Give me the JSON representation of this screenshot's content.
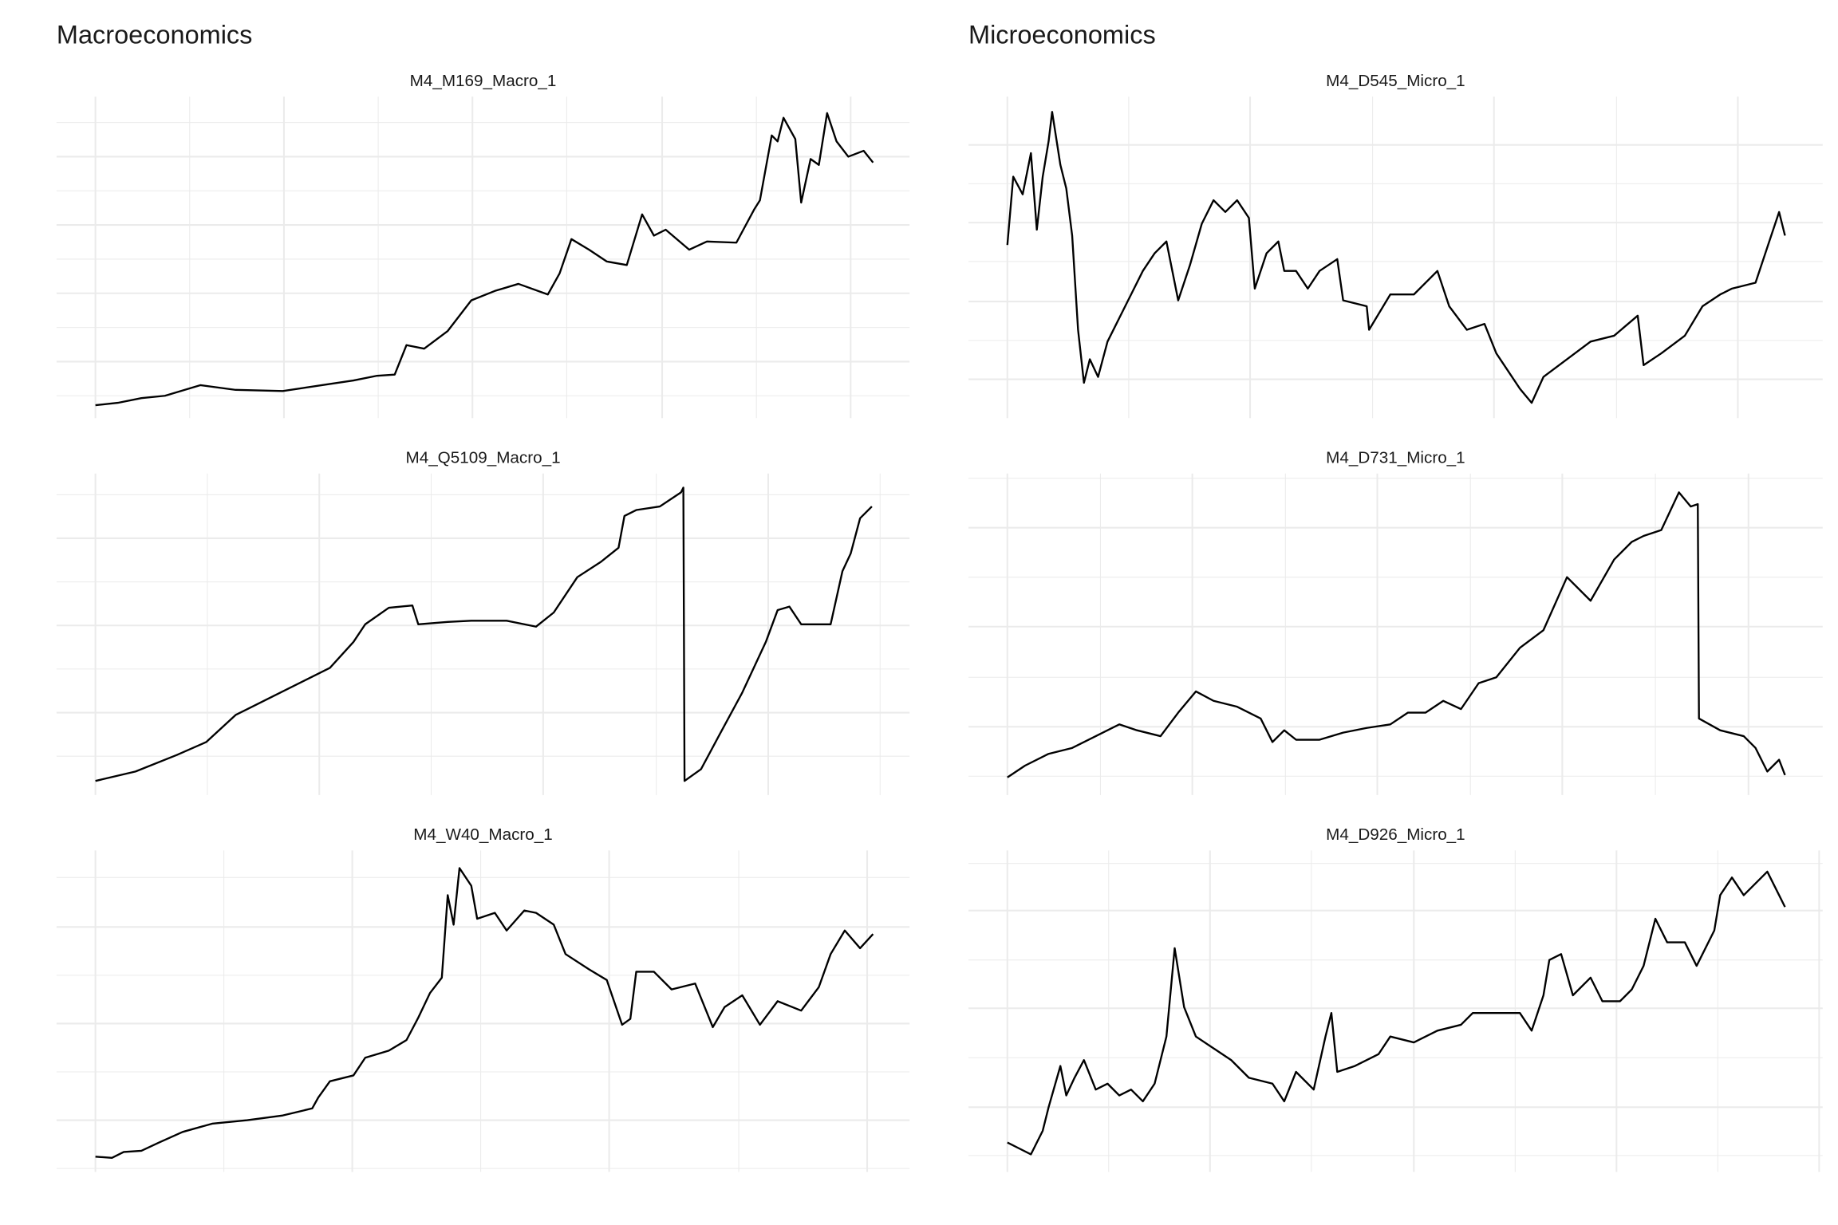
{
  "headings": [
    "Macroeconomics",
    "Microeconomics"
  ],
  "chart_data": [
    {
      "type": "line",
      "title": "M4_M169_Macro_1",
      "color": "#000000",
      "grid": true,
      "xlim": [
        -33,
        691
      ],
      "ylim": [
        0,
        273
      ],
      "xticks": [
        0,
        160,
        320,
        481,
        641
      ],
      "xminor": [
        80,
        240,
        400,
        561
      ],
      "yticks": [
        48,
        106,
        164,
        222
      ],
      "yminor": [
        19,
        77,
        135,
        193,
        251
      ],
      "x": [
        0,
        19,
        39,
        59,
        89,
        119,
        159,
        199,
        219,
        239,
        254,
        264,
        279,
        299,
        319,
        339,
        359,
        384,
        394,
        404,
        419,
        434,
        451,
        464,
        474,
        484,
        504,
        519,
        544,
        559,
        564,
        574,
        579,
        584,
        594,
        599,
        607,
        614,
        621,
        629,
        639,
        652,
        660
      ],
      "values": [
        11,
        13,
        17,
        19,
        28,
        24,
        23,
        29,
        32,
        36,
        37,
        62,
        59,
        74,
        100,
        108,
        114,
        105,
        123,
        152,
        143,
        133,
        130,
        173,
        155,
        160,
        143,
        150,
        149,
        177,
        185,
        240,
        235,
        255,
        237,
        183,
        220,
        215,
        259,
        235,
        222,
        227,
        217
      ]
    },
    {
      "type": "line",
      "title": "M4_Q5109_Macro_1",
      "color": "#000000",
      "grid": true,
      "xlim": [
        -33,
        691
      ],
      "ylim": [
        0,
        273
      ],
      "xticks": [
        0,
        190,
        380,
        571
      ],
      "xminor": [
        95,
        285,
        476,
        666
      ],
      "yticks": [
        70,
        144,
        218
      ],
      "yminor": [
        33,
        107,
        181,
        255
      ],
      "x": [
        0,
        34,
        69,
        94,
        119,
        149,
        179,
        199,
        219,
        229,
        249,
        269,
        274,
        299,
        319,
        349,
        374,
        389,
        409,
        429,
        444,
        449,
        459,
        479,
        497,
        499,
        500,
        514,
        529,
        549,
        569,
        579,
        589,
        599,
        624,
        634,
        641,
        649,
        659
      ],
      "values": [
        12,
        20,
        34,
        45,
        68,
        83,
        98,
        108,
        130,
        145,
        159,
        161,
        145,
        147,
        148,
        148,
        143,
        155,
        185,
        198,
        210,
        237,
        242,
        245,
        257,
        261,
        12,
        22,
        50,
        87,
        130,
        157,
        160,
        145,
        145,
        190,
        205,
        235,
        245
      ]
    },
    {
      "type": "line",
      "title": "M4_W40_Macro_1",
      "color": "#000000",
      "grid": true,
      "xlim": [
        -33,
        691
      ],
      "ylim": [
        0,
        273
      ],
      "xticks": [
        0,
        218,
        436,
        655
      ],
      "xminor": [
        109,
        327,
        546
      ],
      "yticks": [
        44,
        126,
        208
      ],
      "yminor": [
        3,
        85,
        167,
        250
      ],
      "x": [
        0,
        14,
        24,
        39,
        54,
        74,
        99,
        129,
        159,
        184,
        189,
        199,
        219,
        229,
        249,
        264,
        274,
        284,
        294,
        299,
        304,
        309,
        319,
        324,
        339,
        349,
        364,
        374,
        389,
        399,
        419,
        434,
        447,
        454,
        459,
        474,
        489,
        509,
        524,
        534,
        549,
        564,
        579,
        599,
        614,
        624,
        636,
        649,
        660
      ],
      "values": [
        13,
        12,
        17,
        18,
        25,
        34,
        41,
        44,
        48,
        54,
        63,
        77,
        82,
        97,
        103,
        112,
        131,
        152,
        165,
        235,
        210,
        258,
        243,
        215,
        220,
        205,
        222,
        220,
        210,
        185,
        172,
        163,
        125,
        130,
        170,
        170,
        155,
        160,
        123,
        140,
        150,
        125,
        145,
        137,
        157,
        185,
        205,
        190,
        202
      ]
    },
    {
      "type": "line",
      "title": "M4_D545_Micro_1",
      "color": "#000000",
      "grid": true,
      "xlim": [
        -33,
        692
      ],
      "ylim": [
        0,
        273
      ],
      "xticks": [
        0,
        206,
        413,
        620
      ],
      "xminor": [
        103,
        310,
        517
      ],
      "yticks": [
        33,
        99,
        166,
        232
      ],
      "yminor": [
        66,
        133,
        199
      ],
      "x": [
        0,
        5,
        13,
        20,
        25,
        30,
        35,
        38,
        45,
        50,
        55,
        60,
        65,
        70,
        77,
        85,
        95,
        105,
        115,
        125,
        135,
        145,
        155,
        165,
        175,
        185,
        195,
        205,
        210,
        220,
        230,
        235,
        245,
        255,
        265,
        280,
        285,
        305,
        307,
        325,
        345,
        365,
        375,
        390,
        405,
        415,
        435,
        445,
        455,
        475,
        495,
        515,
        535,
        540,
        555,
        575,
        590,
        605,
        615,
        635,
        645,
        655,
        660
      ],
      "values": [
        147,
        205,
        190,
        225,
        160,
        205,
        235,
        260,
        215,
        195,
        155,
        75,
        30,
        50,
        35,
        65,
        85,
        105,
        125,
        140,
        150,
        100,
        130,
        165,
        185,
        175,
        185,
        170,
        110,
        140,
        150,
        125,
        125,
        110,
        125,
        135,
        100,
        95,
        75,
        105,
        105,
        125,
        95,
        75,
        80,
        55,
        25,
        13,
        35,
        50,
        65,
        70,
        87,
        45,
        55,
        70,
        95,
        105,
        110,
        115,
        145,
        175,
        155
      ]
    },
    {
      "type": "line",
      "title": "M4_D731_Micro_1",
      "color": "#000000",
      "grid": true,
      "xlim": [
        -33,
        692
      ],
      "ylim": [
        0,
        273
      ],
      "xticks": [
        0,
        157,
        314,
        471,
        629
      ],
      "xminor": [
        79,
        236,
        393,
        550
      ],
      "yticks": [
        58,
        143,
        227
      ],
      "yminor": [
        16,
        100,
        185,
        269
      ],
      "x": [
        0,
        15,
        35,
        55,
        75,
        95,
        110,
        130,
        145,
        160,
        175,
        195,
        215,
        225,
        235,
        245,
        265,
        285,
        305,
        325,
        340,
        355,
        370,
        385,
        400,
        415,
        435,
        455,
        475,
        495,
        515,
        530,
        540,
        555,
        570,
        580,
        586,
        587,
        605,
        625,
        635,
        645,
        655,
        660
      ],
      "values": [
        15,
        25,
        35,
        40,
        50,
        60,
        55,
        50,
        70,
        88,
        80,
        75,
        65,
        45,
        55,
        47,
        47,
        53,
        57,
        60,
        70,
        70,
        80,
        73,
        95,
        100,
        125,
        140,
        185,
        165,
        200,
        215,
        220,
        225,
        257,
        245,
        247,
        65,
        55,
        50,
        40,
        20,
        30,
        17
      ]
    },
    {
      "type": "line",
      "title": "M4_D926_Micro_1",
      "color": "#000000",
      "grid": true,
      "xlim": [
        -33,
        692
      ],
      "ylim": [
        0,
        273
      ],
      "xticks": [
        0,
        172,
        345,
        517,
        689
      ],
      "xminor": [
        86,
        258,
        431,
        603
      ],
      "yticks": [
        55,
        139,
        222
      ],
      "yminor": [
        14,
        97,
        180,
        262
      ],
      "x": [
        0,
        10,
        20,
        30,
        35,
        45,
        50,
        57,
        65,
        75,
        85,
        95,
        105,
        115,
        125,
        135,
        142,
        150,
        160,
        175,
        190,
        205,
        225,
        235,
        245,
        260,
        270,
        275,
        280,
        295,
        315,
        325,
        345,
        365,
        385,
        395,
        415,
        435,
        445,
        455,
        460,
        470,
        480,
        495,
        505,
        520,
        530,
        540,
        550,
        560,
        575,
        585,
        600,
        605,
        615,
        625,
        635,
        645,
        655,
        660
      ],
      "values": [
        25,
        20,
        15,
        35,
        55,
        90,
        65,
        80,
        95,
        70,
        75,
        65,
        70,
        60,
        75,
        115,
        190,
        140,
        115,
        105,
        95,
        80,
        75,
        60,
        85,
        70,
        115,
        135,
        85,
        90,
        100,
        115,
        110,
        120,
        125,
        135,
        135,
        135,
        120,
        150,
        180,
        185,
        150,
        165,
        145,
        145,
        155,
        175,
        215,
        195,
        195,
        175,
        205,
        235,
        250,
        235,
        245,
        255,
        235,
        225
      ]
    }
  ]
}
